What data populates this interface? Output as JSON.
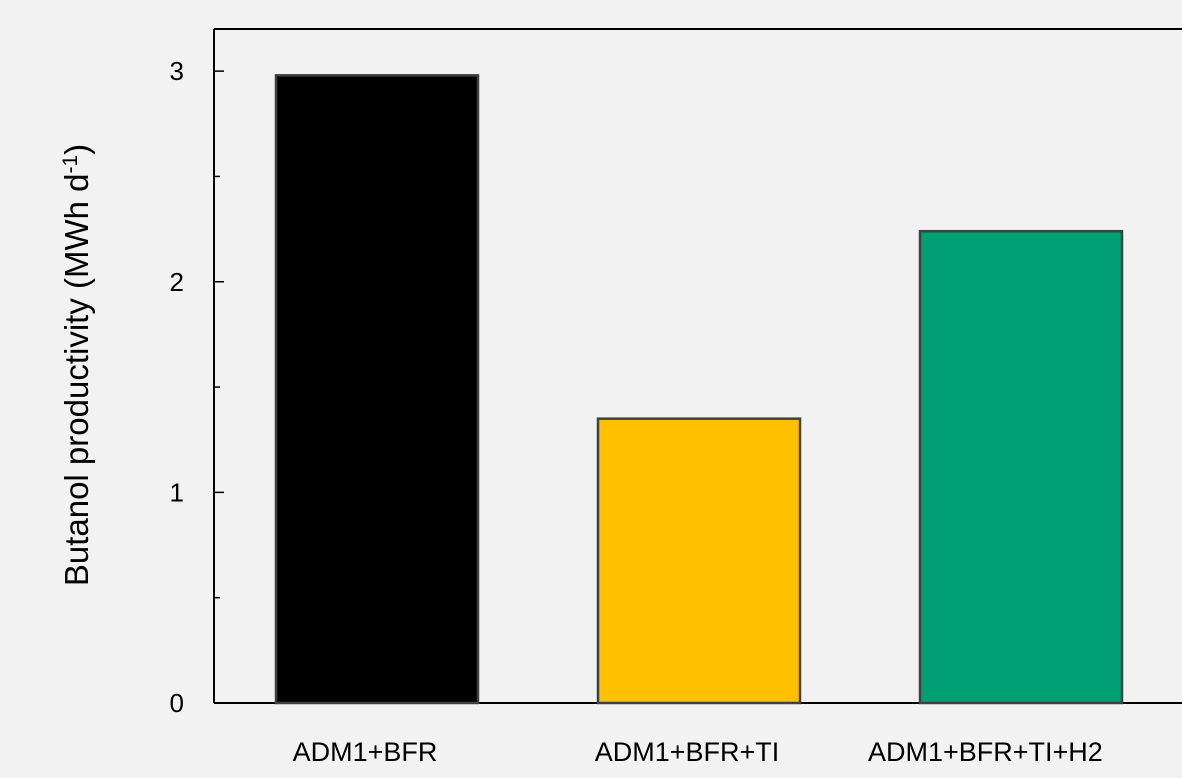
{
  "chart_data": {
    "type": "bar",
    "title": "",
    "xlabel": "",
    "ylabel": "Butanol productivity (MWh d",
    "ylabel_superscript": "-1",
    "ylabel_suffix": ")",
    "categories": [
      "ADM1+BFR",
      "ADM1+BFR+TI",
      "ADM1+BFR+TI+H2"
    ],
    "values": [
      2.98,
      1.35,
      2.24
    ],
    "bar_colors": [
      "#000000",
      "#ffc000",
      "#00a074"
    ],
    "bar_edge_color": "#404040",
    "ylim": [
      0,
      3.2
    ],
    "yticks": [
      0,
      1,
      2,
      3
    ],
    "ytick_labels": [
      "0",
      "1",
      "2",
      "3"
    ],
    "minor_yticks": [
      0.5,
      1.5,
      2.5
    ],
    "grid": false,
    "legend": "none",
    "background_color": "#f2f2f2"
  }
}
